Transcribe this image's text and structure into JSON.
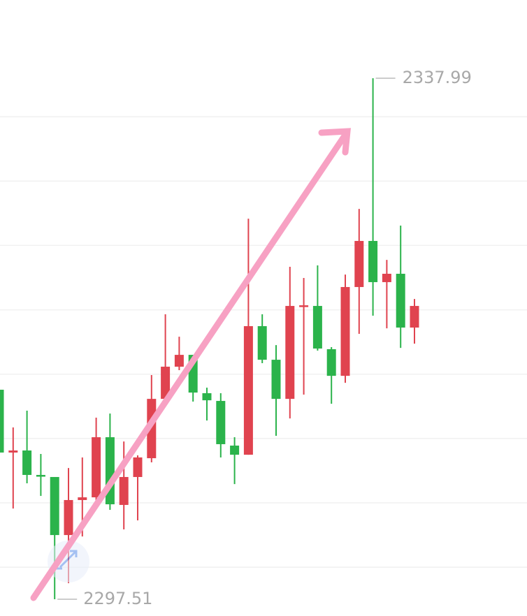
{
  "chart_data": {
    "type": "candlestick",
    "up_color": "#e0434f",
    "down_color": "#2bb34b",
    "ylim": [
      2296.21,
      2344.07
    ],
    "gridlines": [
      2300,
      2305,
      2310,
      2315,
      2320,
      2325,
      2330,
      2335
    ],
    "open": [
      2313.79,
      2308.91,
      2309.07,
      2307.17,
      2307.01,
      2302.5,
      2305.22,
      2305.43,
      2310.1,
      2304.84,
      2307.01,
      2308.47,
      2313.08,
      2315.58,
      2316.5,
      2313.52,
      2312.92,
      2309.45,
      2308.74,
      2318.73,
      2316.12,
      2313.08,
      2320.25,
      2320.3,
      2316.94,
      2314.87,
      2321.77,
      2325.35,
      2322.15,
      2322.8,
      2318.62
    ],
    "high": [
      2313.79,
      2310.86,
      2312.16,
      2308.8,
      2307.01,
      2307.71,
      2308.53,
      2311.62,
      2311.94,
      2309.77,
      2308.69,
      2314.93,
      2319.65,
      2317.91,
      2316.5,
      2313.95,
      2313.52,
      2310.1,
      2327.08,
      2319.65,
      2317.26,
      2323.34,
      2322.47,
      2323.45,
      2317.1,
      2322.74,
      2327.84,
      2337.99,
      2323.88,
      2326.54,
      2320.84
    ],
    "low": [
      2308.91,
      2304.56,
      2306.52,
      2305.54,
      2297.51,
      2298.76,
      2302.39,
      2305.0,
      2304.46,
      2302.94,
      2303.64,
      2308.15,
      2312.87,
      2315.31,
      2312.87,
      2311.4,
      2308.53,
      2306.46,
      2308.74,
      2315.85,
      2310.21,
      2311.56,
      2313.41,
      2316.83,
      2312.7,
      2314.33,
      2318.13,
      2319.54,
      2318.56,
      2317.04,
      2317.37
    ],
    "close": [
      2308.91,
      2309.07,
      2307.17,
      2307.06,
      2302.5,
      2305.22,
      2305.43,
      2310.1,
      2304.89,
      2307.01,
      2308.53,
      2313.08,
      2315.58,
      2316.5,
      2313.57,
      2312.97,
      2309.56,
      2308.74,
      2318.73,
      2316.12,
      2313.08,
      2320.3,
      2320.35,
      2316.99,
      2314.87,
      2321.77,
      2325.35,
      2322.15,
      2322.8,
      2318.62,
      2320.3
    ]
  }
}
